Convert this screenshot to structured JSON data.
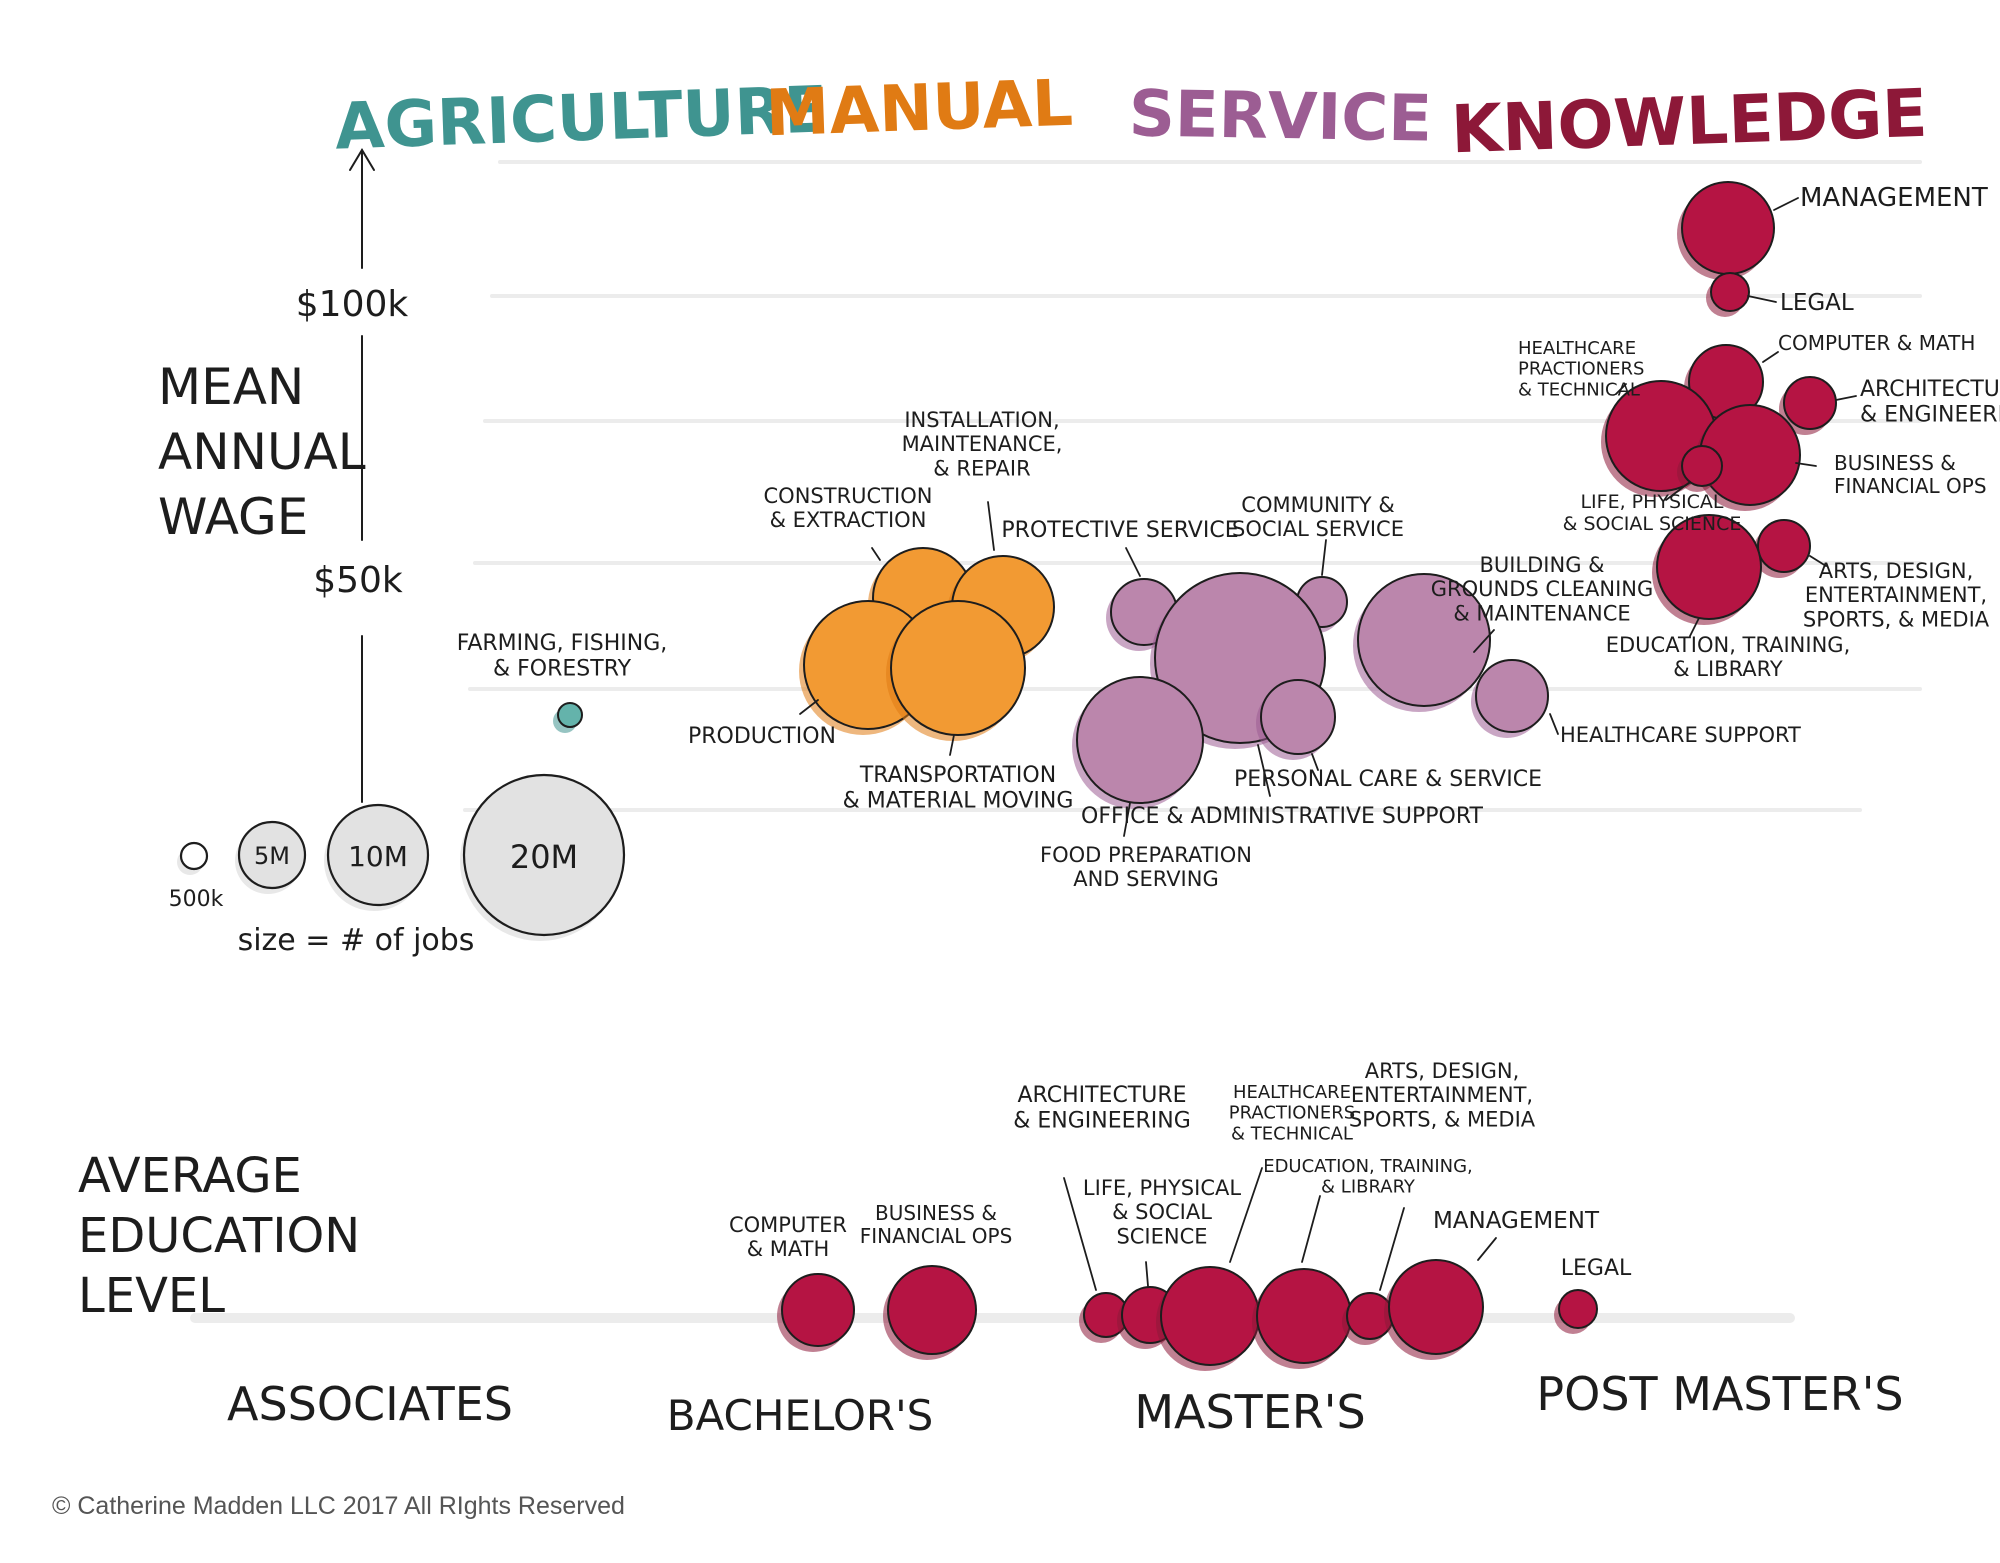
{
  "colors": {
    "agriculture": "#3f9490",
    "manual": "#e07b14",
    "service": "#9c5d93",
    "knowledge": "#8d1838",
    "agriculture_fill": "#64b3ab",
    "manual_fill": "#f29a33",
    "service_fill": "#bb86ac",
    "knowledge_fill": "#b51443",
    "legend_fill": "#e2e2e2",
    "gridline": "#ececec",
    "ink": "#1d1d1d"
  },
  "chart_data": [
    {
      "type": "scatter",
      "categories": [
        "AGRICULTURE",
        "MANUAL",
        "SERVICE",
        "KNOWLEDGE"
      ],
      "ylabel": "MEAN ANNUAL WAGE",
      "yticks": [
        "$100k",
        "$50k"
      ],
      "size_legend": {
        "title": "size = # of jobs",
        "sizes": [
          {
            "label": "500k",
            "jobs_m": 0.5
          },
          {
            "label": "5M",
            "jobs_m": 5
          },
          {
            "label": "10M",
            "jobs_m": 10
          },
          {
            "label": "20M",
            "jobs_m": 20
          }
        ]
      },
      "series": [
        {
          "group": "agriculture",
          "label": "FARMING, FISHING,\n& FORESTRY",
          "wage_k": 25,
          "jobs_m": 0.45
        },
        {
          "group": "manual",
          "label": "CONSTRUCTION\n& EXTRACTION",
          "wage_k": 48,
          "jobs_m": 5.3
        },
        {
          "group": "manual",
          "label": "INSTALLATION,\nMAINTENANCE,\n& REPAIR",
          "wage_k": 46,
          "jobs_m": 5.5
        },
        {
          "group": "manual",
          "label": "PRODUCTION",
          "wage_k": 36,
          "jobs_m": 9
        },
        {
          "group": "manual",
          "label": "TRANSPORTATION\n& MATERIAL MOVING",
          "wage_k": 35,
          "jobs_m": 9.5
        },
        {
          "group": "service",
          "label": "PROTECTIVE SERVICE",
          "wage_k": 45,
          "jobs_m": 3.3
        },
        {
          "group": "service",
          "label": "COMMUNITY &\nSOCIAL SERVICE",
          "wage_k": 47,
          "jobs_m": 2
        },
        {
          "group": "service",
          "label": "OFFICE & ADMINISTRATIVE SUPPORT",
          "wage_k": 38,
          "jobs_m": 21.8
        },
        {
          "group": "service",
          "label": "BUILDING &\nGROUNDS CLEANING\n& MAINTENANCE",
          "wage_k": 28,
          "jobs_m": 4.3
        },
        {
          "group": "service",
          "label": "HEALTHCARE SUPPORT",
          "wage_k": 30,
          "jobs_m": 4
        },
        {
          "group": "service",
          "label": "PERSONAL CARE & SERVICE",
          "wage_k": 26,
          "jobs_m": 4.4
        },
        {
          "group": "service",
          "label": "FOOD PREPARATION\nAND SERVING",
          "wage_k": 23,
          "jobs_m": 13
        },
        {
          "group": "knowledge",
          "label": "MANAGEMENT",
          "wage_k": 118,
          "jobs_m": 7.2
        },
        {
          "group": "knowledge",
          "label": "LEGAL",
          "wage_k": 103,
          "jobs_m": 1.1
        },
        {
          "group": "knowledge",
          "label": "COMPUTER & MATH",
          "wage_k": 87,
          "jobs_m": 4.3
        },
        {
          "group": "knowledge",
          "label": "ARCHITECTURE\n& ENGINEERING",
          "wage_k": 83,
          "jobs_m": 2.5
        },
        {
          "group": "knowledge",
          "label": "HEALTHCARE\nPRACTIONERS\n& TECHNICAL",
          "wage_k": 79,
          "jobs_m": 8.5
        },
        {
          "group": "knowledge",
          "label": "BUSINESS &\nFINANCIAL OPS",
          "wage_k": 73,
          "jobs_m": 7.5
        },
        {
          "group": "knowledge",
          "label": "LIFE, PHYSICAL\n& SOCIAL SCIENCE",
          "wage_k": 72,
          "jobs_m": 1.2
        },
        {
          "group": "knowledge",
          "label": "ARTS, DESIGN,\nENTERTAINMENT,\nSPORTS, & MEDIA",
          "wage_k": 56,
          "jobs_m": 2
        },
        {
          "group": "knowledge",
          "label": "EDUCATION, TRAINING,\n& LIBRARY",
          "wage_k": 52,
          "jobs_m": 8.5
        }
      ]
    },
    {
      "type": "scatter",
      "ylabel": "AVERAGE\nEDUCATION\nLEVEL",
      "categories": [
        "ASSOCIATES",
        "BACHELOR'S",
        "MASTER'S",
        "POST MASTER'S"
      ],
      "series": [
        {
          "label": "COMPUTER\n& MATH",
          "level": 1.5,
          "jobs_m": 4.3
        },
        {
          "label": "BUSINESS &\nFINANCIAL OPS",
          "level": 1.75,
          "jobs_m": 7.5
        },
        {
          "label": "ARCHITECTURE\n& ENGINEERING",
          "level": 2.2,
          "jobs_m": 2.5
        },
        {
          "label": "LIFE, PHYSICAL\n& SOCIAL\nSCIENCE",
          "level": 2.3,
          "jobs_m": 1.2
        },
        {
          "label": "HEALTHCARE\nPRACTIONERS\n& TECHNICAL",
          "level": 2.45,
          "jobs_m": 8.5
        },
        {
          "label": "EDUCATION, TRAINING,\n& LIBRARY",
          "level": 2.75,
          "jobs_m": 8.5
        },
        {
          "label": "ARTS, DESIGN,\nENTERTAINMENT,\nSPORTS, & MEDIA",
          "level": 2.85,
          "jobs_m": 2
        },
        {
          "label": "MANAGEMENT",
          "level": 3.1,
          "jobs_m": 7.2
        },
        {
          "label": "LEGAL",
          "level": 3.55,
          "jobs_m": 1.1
        }
      ]
    }
  ],
  "credit": "© Catherine Madden LLC 2017 All RIghts Reserved"
}
